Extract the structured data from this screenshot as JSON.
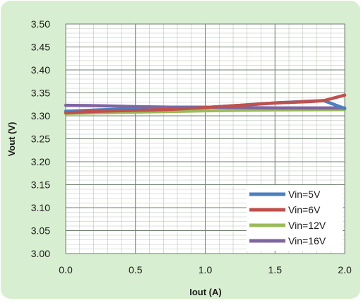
{
  "chart_data": {
    "type": "line",
    "title": "",
    "xlabel": "Iout (A)",
    "ylabel": "Vout (V)",
    "xlim": [
      0,
      2.0
    ],
    "ylim": [
      3.0,
      3.5
    ],
    "x_ticks": [
      "0.0",
      "0.5",
      "1.0",
      "1.5",
      "2.0"
    ],
    "y_ticks": [
      "3.00",
      "3.05",
      "3.10",
      "3.15",
      "3.20",
      "3.25",
      "3.30",
      "3.35",
      "3.40",
      "3.45",
      "3.50"
    ],
    "grid": true,
    "legend_position": "bottom-right",
    "background_color": "#d8eed0",
    "plot_background": "#ffffff",
    "grid_color": "#9aaa9a",
    "series": [
      {
        "name": "Vin=5V",
        "color": "#4a7fc1",
        "x": [
          0.0,
          0.25,
          0.5,
          0.75,
          1.0,
          1.25,
          1.5,
          1.75,
          1.85,
          2.0
        ],
        "y": [
          3.31,
          3.313,
          3.315,
          3.316,
          3.318,
          3.323,
          3.328,
          3.332,
          3.333,
          3.316
        ]
      },
      {
        "name": "Vin=6V",
        "color": "#c0504d",
        "x": [
          0.0,
          0.25,
          0.5,
          0.75,
          1.0,
          1.25,
          1.5,
          1.75,
          1.85,
          2.0
        ],
        "y": [
          3.307,
          3.31,
          3.312,
          3.314,
          3.318,
          3.323,
          3.328,
          3.331,
          3.333,
          3.345
        ]
      },
      {
        "name": "Vin=12V",
        "color": "#9bbb59",
        "x": [
          0.0,
          0.5,
          1.0,
          1.5,
          2.0
        ],
        "y": [
          3.305,
          3.308,
          3.311,
          3.313,
          3.314
        ]
      },
      {
        "name": "Vin=16V",
        "color": "#8064a2",
        "x": [
          0.0,
          0.25,
          0.5,
          0.75,
          1.0,
          1.25,
          1.5,
          1.75,
          2.0
        ],
        "y": [
          3.323,
          3.322,
          3.32,
          3.319,
          3.319,
          3.318,
          3.317,
          3.317,
          3.317
        ]
      }
    ]
  }
}
